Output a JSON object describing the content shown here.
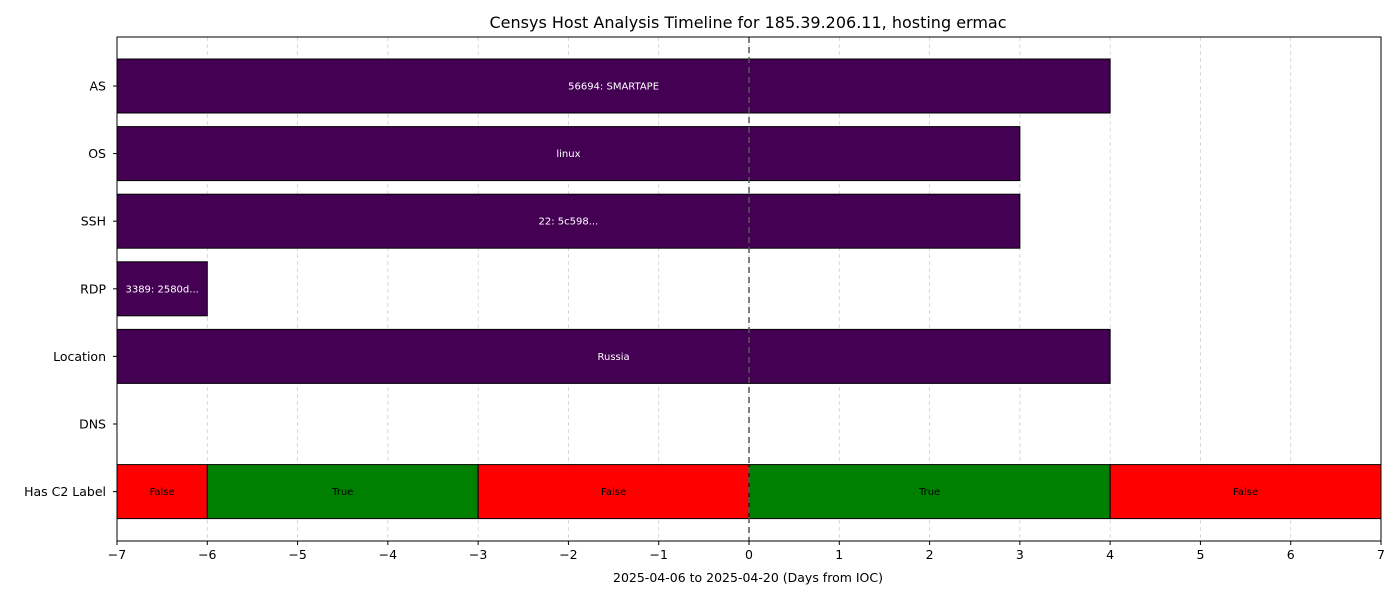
{
  "chart_data": {
    "type": "bar",
    "orientation": "horizontal",
    "title": "Censys Host Analysis Timeline for 185.39.206.11, hosting ermac",
    "xlabel": "2025-04-06 to 2025-04-20 (Days from IOC)",
    "ylabel": "",
    "xlim": [
      -7,
      7
    ],
    "xticks": [
      -7,
      -6,
      -5,
      -4,
      -3,
      -2,
      -1,
      0,
      1,
      2,
      3,
      4,
      5,
      6,
      7
    ],
    "xtick_labels": [
      "−7",
      "−6",
      "−5",
      "−4",
      "−3",
      "−2",
      "−1",
      "0",
      "1",
      "2",
      "3",
      "4",
      "5",
      "6",
      "7"
    ],
    "grid": "x-dashed",
    "reference_line_x": 0,
    "categories": [
      "AS",
      "OS",
      "SSH",
      "RDP",
      "Location",
      "DNS",
      "Has C2 Label"
    ],
    "segments": [
      {
        "category": "AS",
        "start": -7,
        "end": 4,
        "label": "56694: SMARTAPE",
        "color": "#440154",
        "label_color": "#ffffff"
      },
      {
        "category": "OS",
        "start": -7,
        "end": 3,
        "label": "linux",
        "color": "#440154",
        "label_color": "#ffffff"
      },
      {
        "category": "SSH",
        "start": -7,
        "end": 3,
        "label": "22: 5c598...",
        "color": "#440154",
        "label_color": "#ffffff"
      },
      {
        "category": "RDP",
        "start": -7,
        "end": -6,
        "label": "3389: 2580d...",
        "color": "#440154",
        "label_color": "#ffffff"
      },
      {
        "category": "Location",
        "start": -7,
        "end": 4,
        "label": "Russia",
        "color": "#440154",
        "label_color": "#ffffff"
      },
      {
        "category": "Has C2 Label",
        "start": -7,
        "end": -6,
        "label": "False",
        "color": "#ff0000",
        "label_color": "#000000"
      },
      {
        "category": "Has C2 Label",
        "start": -6,
        "end": -3,
        "label": "True",
        "color": "#008000",
        "label_color": "#000000"
      },
      {
        "category": "Has C2 Label",
        "start": -3,
        "end": 0,
        "label": "False",
        "color": "#ff0000",
        "label_color": "#000000"
      },
      {
        "category": "Has C2 Label",
        "start": 0,
        "end": 4,
        "label": "True",
        "color": "#008000",
        "label_color": "#000000"
      },
      {
        "category": "Has C2 Label",
        "start": 4,
        "end": 7,
        "label": "False",
        "color": "#ff0000",
        "label_color": "#000000"
      }
    ]
  }
}
